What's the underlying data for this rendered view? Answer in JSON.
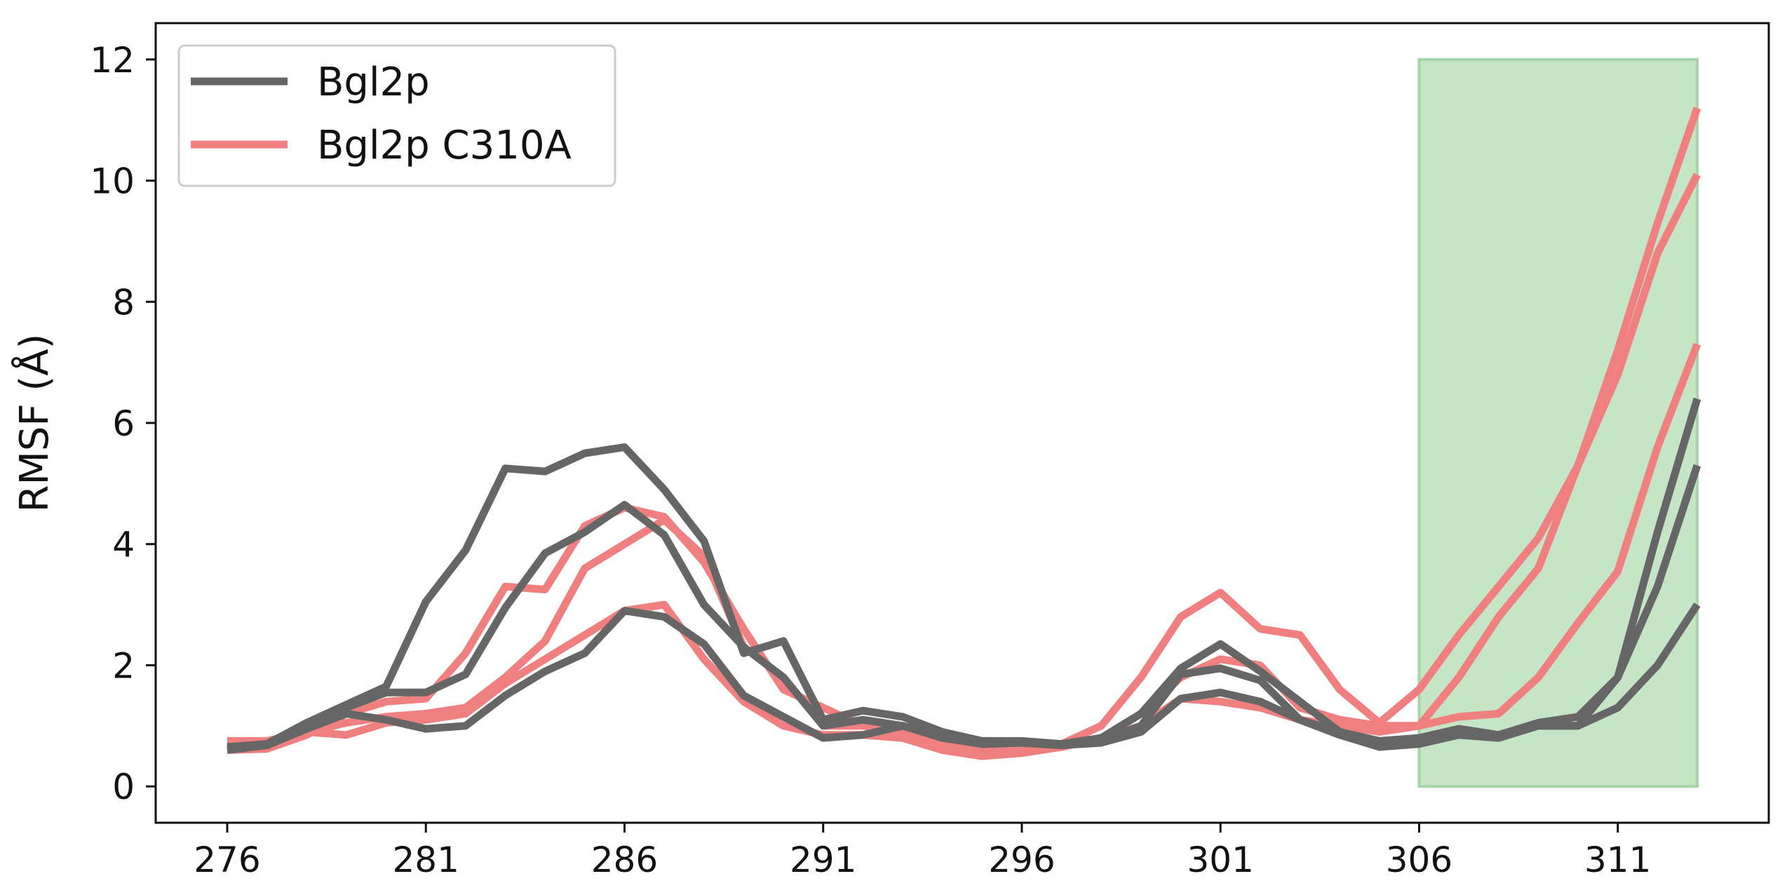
{
  "chart_data": {
    "type": "line",
    "title": "",
    "xlabel": "",
    "ylabel": "RMSF (Å)",
    "xlim": [
      274.2,
      314.8
    ],
    "ylim": [
      -0.6,
      12.6
    ],
    "xticks": [
      276,
      281,
      286,
      291,
      296,
      301,
      306,
      311
    ],
    "yticks": [
      0,
      2,
      4,
      6,
      8,
      10,
      12
    ],
    "grid": false,
    "legend_position": "top-left",
    "legend": [
      {
        "label": "Bgl2p",
        "color": "#666666"
      },
      {
        "label": "Bgl2p C310A",
        "color": "#f08080"
      }
    ],
    "highlight_region": {
      "x": [
        306,
        313
      ],
      "y": [
        0,
        12
      ],
      "color": "#c6e4c6",
      "edge_color": "#a6d6a6"
    },
    "x": [
      276,
      277,
      278,
      279,
      280,
      281,
      282,
      283,
      284,
      285,
      286,
      287,
      288,
      289,
      290,
      291,
      292,
      293,
      294,
      295,
      296,
      297,
      298,
      299,
      300,
      301,
      302,
      303,
      304,
      305,
      306,
      307,
      308,
      309,
      310,
      311,
      312,
      313
    ],
    "series": [
      {
        "group": "Bgl2p C310A",
        "color": "#f08080",
        "values": [
          0.6,
          0.62,
          0.85,
          1.2,
          1.4,
          1.45,
          2.2,
          3.3,
          3.25,
          4.3,
          4.6,
          4.45,
          3.7,
          2.6,
          1.6,
          1.3,
          1.0,
          0.9,
          0.7,
          0.6,
          0.65,
          0.7,
          1.0,
          1.8,
          2.8,
          3.2,
          2.6,
          2.5,
          1.6,
          1.05,
          1.6,
          2.5,
          3.3,
          4.1,
          5.3,
          7.2,
          9.3,
          11.2
        ]
      },
      {
        "group": "Bgl2p C310A",
        "color": "#f08080",
        "values": [
          0.7,
          0.72,
          0.9,
          1.05,
          1.15,
          1.2,
          1.3,
          1.8,
          2.4,
          3.6,
          4.0,
          4.4,
          3.8,
          2.3,
          1.8,
          1.0,
          1.0,
          0.95,
          0.7,
          0.6,
          0.6,
          0.65,
          0.8,
          1.2,
          1.8,
          2.1,
          2.0,
          1.3,
          1.1,
          1.0,
          1.0,
          1.8,
          2.8,
          3.6,
          5.3,
          6.8,
          8.8,
          10.1
        ]
      },
      {
        "group": "Bgl2p C310A",
        "color": "#f08080",
        "values": [
          0.75,
          0.75,
          0.9,
          0.85,
          1.05,
          1.1,
          1.2,
          1.7,
          2.1,
          2.5,
          2.9,
          3.0,
          2.1,
          1.4,
          1.0,
          0.85,
          0.85,
          0.8,
          0.6,
          0.5,
          0.55,
          0.65,
          0.8,
          1.0,
          1.45,
          1.4,
          1.3,
          1.1,
          1.0,
          0.9,
          1.0,
          1.15,
          1.2,
          1.8,
          2.7,
          3.55,
          5.6,
          7.3
        ]
      },
      {
        "group": "Bgl2p",
        "color": "#666666",
        "values": [
          0.65,
          0.7,
          1.05,
          1.35,
          1.65,
          3.05,
          3.9,
          5.25,
          5.2,
          5.5,
          5.6,
          4.9,
          4.05,
          2.2,
          2.4,
          1.1,
          1.25,
          1.15,
          0.9,
          0.75,
          0.75,
          0.7,
          0.8,
          1.2,
          1.95,
          2.35,
          1.9,
          1.4,
          0.9,
          0.7,
          0.8,
          0.9,
          0.85,
          1.05,
          1.15,
          1.8,
          4.2,
          6.4
        ]
      },
      {
        "group": "Bgl2p",
        "color": "#666666",
        "values": [
          0.65,
          0.68,
          1.0,
          1.3,
          1.55,
          1.55,
          1.85,
          2.95,
          3.85,
          4.2,
          4.65,
          4.15,
          3.0,
          2.3,
          1.8,
          1.0,
          1.1,
          1.0,
          0.85,
          0.7,
          0.72,
          0.68,
          0.75,
          1.0,
          1.85,
          1.95,
          1.75,
          1.1,
          0.9,
          0.75,
          0.8,
          0.95,
          0.85,
          1.0,
          1.0,
          1.8,
          3.3,
          5.3
        ]
      },
      {
        "group": "Bgl2p",
        "color": "#666666",
        "values": [
          0.6,
          0.68,
          0.95,
          1.2,
          1.1,
          0.95,
          1.0,
          1.5,
          1.9,
          2.2,
          2.9,
          2.8,
          2.35,
          1.5,
          1.15,
          0.8,
          0.85,
          1.0,
          0.8,
          0.7,
          0.72,
          0.68,
          0.72,
          0.9,
          1.45,
          1.55,
          1.4,
          1.1,
          0.85,
          0.65,
          0.7,
          0.85,
          0.8,
          1.0,
          1.0,
          1.3,
          2.0,
          3.0
        ]
      }
    ]
  }
}
